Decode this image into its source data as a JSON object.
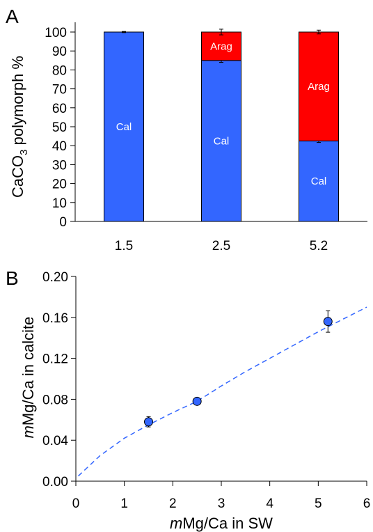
{
  "chart_data": [
    {
      "panel": "A",
      "type": "bar",
      "stacked": true,
      "categories": [
        "1.5",
        "2.5",
        "5.2"
      ],
      "ylabel_main": "CaCO",
      "ylabel_sub": "3",
      "ylabel_rest": " polymorph %",
      "ylim": [
        0,
        100
      ],
      "yticks": [
        0,
        10,
        20,
        30,
        40,
        50,
        60,
        70,
        80,
        90,
        100
      ],
      "series": [
        {
          "name": "Cal",
          "color": "#3366ff",
          "values": [
            100,
            85,
            42.5
          ],
          "errors": [
            0,
            1.0,
            0.8
          ]
        },
        {
          "name": "Arag",
          "color": "#ff0000",
          "values": [
            0,
            15,
            57.5
          ],
          "errors": [
            0.3,
            1.5,
            1.0
          ]
        }
      ],
      "segment_labels": [
        {
          "category": "1.5",
          "series": "Cal",
          "text": "Cal"
        },
        {
          "category": "2.5",
          "series": "Cal",
          "text": "Cal"
        },
        {
          "category": "2.5",
          "series": "Arag",
          "text": "Arag"
        },
        {
          "category": "5.2",
          "series": "Cal",
          "text": "Cal"
        },
        {
          "category": "5.2",
          "series": "Arag",
          "text": "Arag"
        }
      ]
    },
    {
      "panel": "B",
      "type": "scatter",
      "xlabel_italic": "m",
      "xlabel_rest": "Mg/Ca in SW",
      "ylabel_italic": "m",
      "ylabel_rest": "Mg/Ca in calcite",
      "xlim": [
        0,
        6
      ],
      "ylim": [
        0,
        0.2
      ],
      "xticks": [
        "0",
        "1",
        "2",
        "3",
        "4",
        "5",
        "6"
      ],
      "yticks": [
        "0.00",
        "0.04",
        "0.08",
        "0.12",
        "0.16",
        "0.20"
      ],
      "points": [
        {
          "x": 1.5,
          "y": 0.058,
          "err": 0.005
        },
        {
          "x": 2.5,
          "y": 0.078,
          "err": 0.001
        },
        {
          "x": 5.2,
          "y": 0.156,
          "err": 0.0105
        }
      ],
      "marker_color": "#3366ff",
      "fit_curve": {
        "style": "dashed",
        "color": "#3366ff",
        "points": [
          [
            0.05,
            0.005
          ],
          [
            0.5,
            0.025
          ],
          [
            1,
            0.042
          ],
          [
            1.5,
            0.055
          ],
          [
            2,
            0.067
          ],
          [
            2.5,
            0.078
          ],
          [
            3,
            0.093
          ],
          [
            3.5,
            0.107
          ],
          [
            4,
            0.12
          ],
          [
            4.5,
            0.133
          ],
          [
            5,
            0.146
          ],
          [
            5.5,
            0.158
          ],
          [
            6,
            0.17
          ]
        ]
      }
    }
  ],
  "panel_labels": {
    "a": "A",
    "b": "B"
  }
}
